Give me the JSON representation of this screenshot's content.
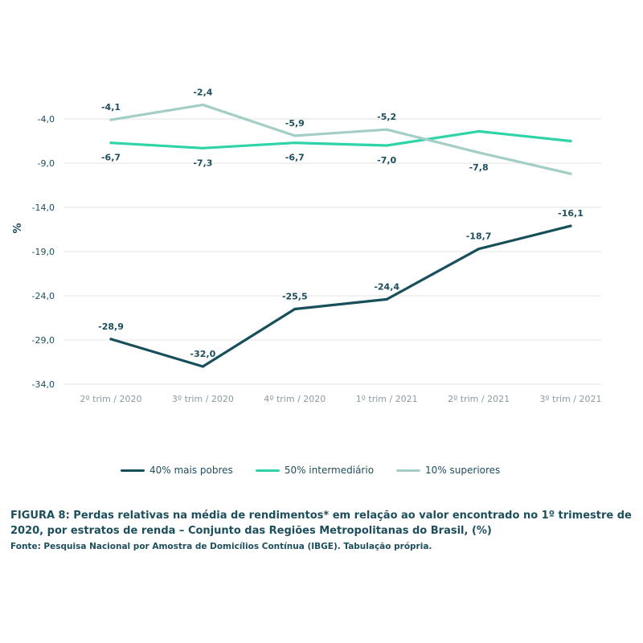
{
  "chart_data": {
    "type": "line",
    "ylabel": "%",
    "ylim": [
      -34,
      -1
    ],
    "yticks": [
      "-4,0",
      "-9,0",
      "-14,0",
      "-19,0",
      "-24,0",
      "-29,0",
      "-34,0"
    ],
    "ytick_values": [
      -4,
      -9,
      -14,
      -19,
      -24,
      -29,
      -34
    ],
    "categories": [
      "2º trim / 2020",
      "3º trim / 2020",
      "4º trim / 2020",
      "1º trim / 2021",
      "2º trim / 2021",
      "3º trim / 2021"
    ],
    "grid": true,
    "legend_position": "bottom",
    "series": [
      {
        "name": "40% mais pobres",
        "color": "#174f5a",
        "values": [
          -28.9,
          -32.0,
          -25.5,
          -24.4,
          -18.7,
          -16.1
        ],
        "labels": [
          "-28,9",
          "-32,0",
          "-25,5",
          "-24,4",
          "-18,7",
          "-16,1"
        ],
        "label_pos": [
          "above",
          "above",
          "above",
          "above",
          "above",
          "above"
        ]
      },
      {
        "name": "50% intermediário",
        "color": "#2ed3a8",
        "values": [
          -6.7,
          -7.3,
          -6.7,
          -7.0,
          -5.4,
          -6.5
        ],
        "labels": [
          "-6,7",
          "-7,3",
          "-6,7",
          "-7,0",
          "",
          ""
        ],
        "label_pos": [
          "below",
          "below",
          "below",
          "below",
          "none",
          "none"
        ]
      },
      {
        "name": "10% superiores",
        "color": "#a2cec6",
        "values": [
          -4.1,
          -2.4,
          -5.9,
          -5.2,
          -7.8,
          -10.2
        ],
        "labels": [
          "-4,1",
          "-2,4",
          "-5,9",
          "-5,2",
          "-7,8",
          ""
        ],
        "label_pos": [
          "above",
          "above",
          "above",
          "above",
          "below",
          "none"
        ]
      }
    ]
  },
  "caption": {
    "title": "FIGURA 8: Perdas relativas na média de rendimentos* em relação ao valor encontrado no 1º trimestre de 2020, por estratos de renda – Conjunto das Regiões Metropolitanas do Brasil, (%)",
    "source": "Fonte: Pesquisa Nacional por Amostra de Domicílios Contínua (IBGE). Tabulação própria."
  }
}
